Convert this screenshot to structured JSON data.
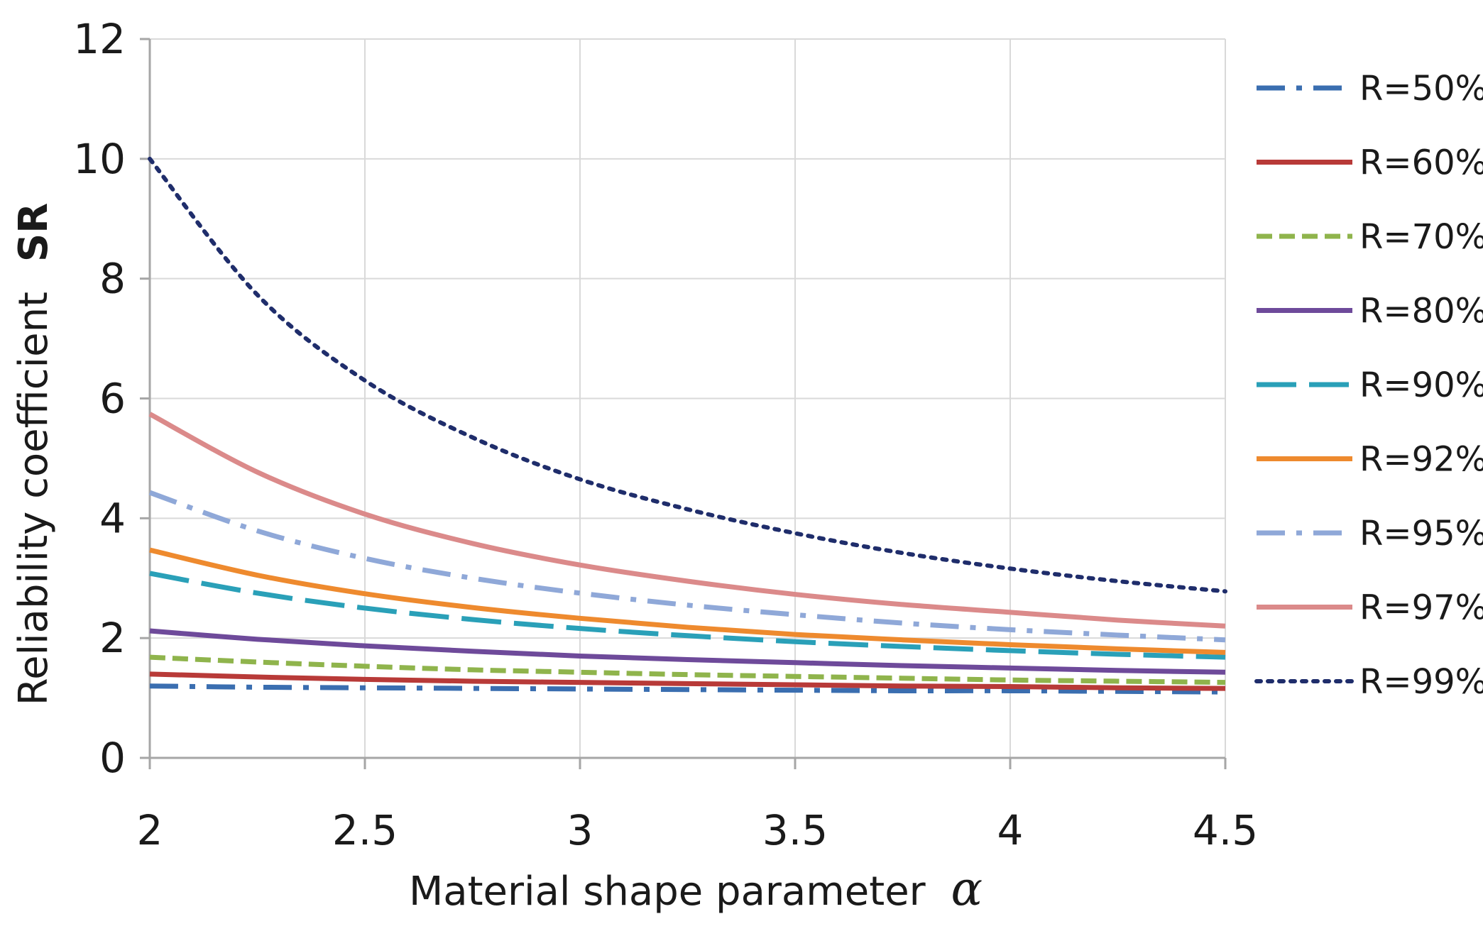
{
  "chart_data": {
    "type": "line",
    "xlabel": "Material shape parameter",
    "xlabel_symbol": "α",
    "ylabel": "Reliability coefficient",
    "ylabel_symbol": "SR",
    "xlim": [
      2,
      4.5
    ],
    "ylim": [
      0,
      12
    ],
    "x_ticks": [
      "2",
      "2.5",
      "3",
      "3.5",
      "4",
      "4.5"
    ],
    "y_ticks": [
      "0",
      "2",
      "4",
      "6",
      "8",
      "10",
      "12"
    ],
    "grid": true,
    "legend_position": "right",
    "x": [
      2,
      2.25,
      2.5,
      2.75,
      3,
      3.25,
      3.5,
      3.75,
      4,
      4.25,
      4.5
    ],
    "series": [
      {
        "name": "R=50%",
        "color": "#3a6eb0",
        "dash": "dash-dot",
        "values": [
          1.2,
          1.18,
          1.17,
          1.16,
          1.15,
          1.14,
          1.13,
          1.12,
          1.12,
          1.11,
          1.1
        ]
      },
      {
        "name": "R=60%",
        "color": "#b83a38",
        "dash": "solid",
        "values": [
          1.4,
          1.35,
          1.31,
          1.28,
          1.26,
          1.24,
          1.22,
          1.2,
          1.19,
          1.17,
          1.16
        ]
      },
      {
        "name": "R=70%",
        "color": "#8fb44c",
        "dash": "dashed",
        "values": [
          1.68,
          1.6,
          1.53,
          1.47,
          1.43,
          1.39,
          1.36,
          1.33,
          1.3,
          1.28,
          1.26
        ]
      },
      {
        "name": "R=80%",
        "color": "#6e4a9a",
        "dash": "solid",
        "values": [
          2.12,
          1.98,
          1.87,
          1.78,
          1.7,
          1.64,
          1.59,
          1.54,
          1.5,
          1.46,
          1.43
        ]
      },
      {
        "name": "R=90%",
        "color": "#2aa0b8",
        "dash": "long-dash",
        "values": [
          3.08,
          2.75,
          2.5,
          2.31,
          2.16,
          2.04,
          1.94,
          1.86,
          1.79,
          1.73,
          1.68
        ]
      },
      {
        "name": "R=92%",
        "color": "#ee8a2e",
        "dash": "solid",
        "values": [
          3.47,
          3.05,
          2.74,
          2.51,
          2.33,
          2.18,
          2.06,
          1.97,
          1.89,
          1.82,
          1.76
        ]
      },
      {
        "name": "R=95%",
        "color": "#8fa8d8",
        "dash": "dash-dot",
        "values": [
          4.43,
          3.79,
          3.33,
          3.0,
          2.75,
          2.55,
          2.39,
          2.25,
          2.14,
          2.05,
          1.97
        ]
      },
      {
        "name": "R=97%",
        "color": "#db8a8a",
        "dash": "solid",
        "values": [
          5.74,
          4.77,
          4.07,
          3.58,
          3.22,
          2.95,
          2.73,
          2.56,
          2.43,
          2.3,
          2.2
        ]
      },
      {
        "name": "R=99%",
        "color": "#1f2d6b",
        "dash": "dotted",
        "values": [
          10.0,
          7.73,
          6.3,
          5.35,
          4.65,
          4.15,
          3.75,
          3.42,
          3.16,
          2.95,
          2.78
        ]
      }
    ]
  }
}
